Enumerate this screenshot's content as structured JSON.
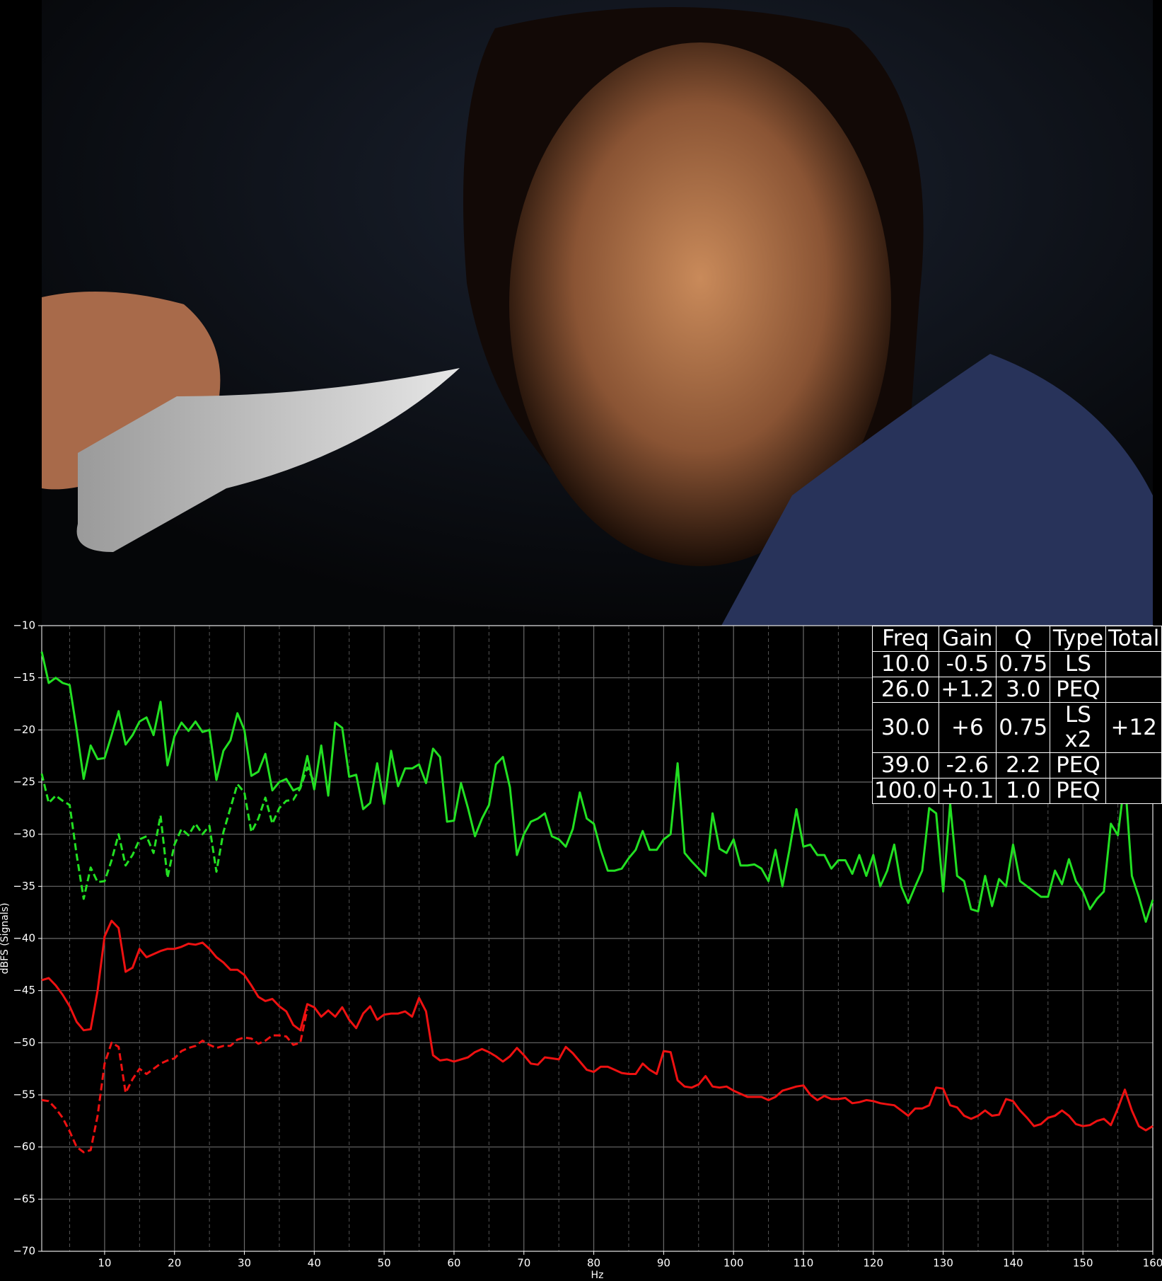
{
  "chart_data": {
    "type": "line",
    "ylabel": "dBFS (Signals)",
    "xlabel": "Hz",
    "xlim": [
      1,
      160
    ],
    "ylim": [
      -70,
      -10
    ],
    "xticks": [
      10,
      20,
      30,
      40,
      50,
      60,
      70,
      80,
      90,
      100,
      110,
      120,
      130,
      140,
      150,
      160
    ],
    "xminorticks": [
      5,
      15,
      25,
      35,
      45,
      55,
      65,
      75,
      85,
      95,
      105,
      115,
      125,
      135,
      145,
      155
    ],
    "yticks": [
      {
        "value": -70,
        "label": "−70"
      },
      {
        "value": -65,
        "label": "−65"
      },
      {
        "value": -60,
        "label": "−60"
      },
      {
        "value": -55,
        "label": "−55"
      },
      {
        "value": -50,
        "label": "−50"
      },
      {
        "value": -45,
        "label": "−45"
      },
      {
        "value": -40,
        "label": "−40"
      },
      {
        "value": -35,
        "label": "−35"
      },
      {
        "value": -30,
        "label": "−30"
      },
      {
        "value": -25,
        "label": "−25"
      },
      {
        "value": -20,
        "label": "−20"
      },
      {
        "value": -15,
        "label": "−15"
      },
      {
        "value": -10,
        "label": "−10"
      }
    ],
    "grid": true,
    "x": [
      1,
      2,
      3,
      4,
      5,
      6,
      7,
      8,
      9,
      10,
      11,
      12,
      13,
      14,
      15,
      16,
      17,
      18,
      19,
      20,
      21,
      22,
      23,
      24,
      25,
      26,
      27,
      28,
      29,
      30,
      31,
      32,
      33,
      34,
      35,
      36,
      37,
      38,
      39,
      40,
      41,
      42,
      43,
      44,
      45,
      46,
      47,
      48,
      49,
      50,
      51,
      52,
      53,
      54,
      55,
      56,
      57,
      58,
      59,
      60,
      61,
      62,
      63,
      64,
      65,
      66,
      67,
      68,
      69,
      70,
      71,
      72,
      73,
      74,
      75,
      76,
      77,
      78,
      79,
      80,
      81,
      82,
      83,
      84,
      85,
      86,
      87,
      88,
      89,
      90,
      91,
      92,
      93,
      94,
      95,
      96,
      97,
      98,
      99,
      100,
      101,
      102,
      103,
      104,
      105,
      106,
      107,
      108,
      109,
      110,
      111,
      112,
      113,
      114,
      115,
      116,
      117,
      118,
      119,
      120,
      121,
      122,
      123,
      124,
      125,
      126,
      127,
      128,
      129,
      130,
      131,
      132,
      133,
      134,
      135,
      136,
      137,
      138,
      139,
      140,
      141,
      142,
      143,
      144,
      145,
      146,
      147,
      148,
      149,
      150,
      151,
      152,
      153,
      154,
      155,
      156,
      157,
      158,
      159,
      160
    ],
    "series": [
      {
        "color": "#22e022",
        "dashed": false,
        "values": [
          -12.5,
          -15.5,
          -15,
          -15.5,
          -15.7,
          -20,
          -24.7,
          -21.5,
          -22.8,
          -22.7,
          -20.5,
          -18.2,
          -21.4,
          -20.5,
          -19.2,
          -18.8,
          -20.5,
          -17.3,
          -23.4,
          -20.6,
          -19.3,
          -20.1,
          -19.2,
          -20.2,
          -20,
          -24.8,
          -22,
          -21,
          -18.4,
          -20,
          -24.4,
          -24,
          -22.3,
          -25.8,
          -25,
          -24.7,
          -25.8,
          -25.5,
          -22.5,
          -25.7,
          -21.5,
          -26.3,
          -19.3,
          -19.8,
          -24.5,
          -24.3,
          -27.6,
          -27,
          -23.2,
          -27.1,
          -22,
          -25.4,
          -23.7,
          -23.7,
          -23.3,
          -25.1,
          -21.8,
          -22.6,
          -28.8,
          -28.7,
          -25.1,
          -27.5,
          -30.2,
          -28.5,
          -27.2,
          -23.3,
          -22.6,
          -25.5,
          -32,
          -30,
          -28.8,
          -28.5,
          -28,
          -30.2,
          -30.5,
          -31.2,
          -29.5,
          -26,
          -28.5,
          -29,
          -31.5,
          -33.5,
          -33.5,
          -33.3,
          -32.3,
          -31.5,
          -29.7,
          -31.5,
          -31.5,
          -30.5,
          -30,
          -23.2,
          -31.8,
          -32.6,
          -33.3,
          -34,
          -28,
          -31.4,
          -31.8,
          -30.5,
          -33,
          -33,
          -32.9,
          -33.3,
          -34.5,
          -31.5,
          -35,
          -31.5,
          -27.6,
          -31.2,
          -31,
          -32,
          -32,
          -33.3,
          -32.5,
          -32.5,
          -33.8,
          -32,
          -34,
          -32,
          -35,
          -33.5,
          -31,
          -35,
          -36.6,
          -35,
          -33.5,
          -27.5,
          -28,
          -35.5,
          -27.1,
          -34,
          -34.5,
          -37.2,
          -37.4,
          -34,
          -36.9,
          -34.3,
          -35,
          -31,
          -34.5,
          -35,
          -35.5,
          -36,
          -36,
          -33.5,
          -34.8,
          -32.4,
          -34.5,
          -35.5,
          -37.2,
          -36.2,
          -35.5,
          -29,
          -30.1,
          -24.7,
          -34,
          -36,
          -38.4,
          -36.3
        ]
      },
      {
        "color": "#22e022",
        "dashed": true,
        "values": [
          -24.2,
          -27,
          -26.3,
          -26.8,
          -27.2,
          -32,
          -36.2,
          -33.2,
          -34.6,
          -34.5,
          -32.5,
          -30,
          -33,
          -32,
          -30.5,
          -30.2,
          -31.8,
          -28.2,
          -34.2,
          -31,
          -29.5,
          -30.1,
          -29,
          -30,
          -29.2,
          -33.6,
          -29.8,
          -27.5,
          -25.2,
          -26,
          -29.8,
          -28.5,
          -26.5,
          -29,
          -27.5,
          -26.8,
          -26.7,
          -25.6,
          -23.6,
          -25,
          null,
          null,
          null,
          null,
          null,
          null,
          null,
          null,
          null,
          null,
          null,
          null,
          null,
          null,
          null,
          null,
          null,
          null,
          null,
          null,
          null,
          null,
          null,
          null,
          null,
          null,
          null,
          null,
          null,
          null,
          null,
          null,
          null,
          null,
          null,
          null,
          null,
          null,
          null,
          null,
          null,
          null,
          null,
          null,
          null,
          null,
          null,
          null,
          null,
          null,
          null,
          null,
          null,
          null,
          null,
          null,
          null,
          null,
          null,
          null,
          null,
          null,
          null,
          null,
          null,
          null,
          null,
          null,
          null,
          null,
          null,
          null,
          null,
          null,
          null,
          null,
          null,
          null,
          null,
          null,
          null,
          null,
          null,
          null,
          null,
          null,
          null,
          null,
          null,
          null,
          null,
          null,
          null,
          null,
          null,
          null,
          null,
          null,
          null,
          null,
          null,
          null,
          null,
          null,
          null,
          null,
          null,
          null,
          null,
          null,
          null,
          null,
          null,
          null,
          null,
          null,
          null,
          null,
          null,
          null
        ]
      },
      {
        "color": "#ee1111",
        "dashed": false,
        "values": [
          -44,
          -43.8,
          -44.5,
          -45.4,
          -46.5,
          -48,
          -48.8,
          -48.7,
          -45,
          -39.8,
          -38.3,
          -39,
          -43.2,
          -42.8,
          -41,
          -41.8,
          -41.5,
          -41.2,
          -41,
          -41,
          -40.8,
          -40.5,
          -40.6,
          -40.4,
          -41,
          -41.8,
          -42.3,
          -43,
          -43,
          -43.5,
          -44.5,
          -45.6,
          -46,
          -45.8,
          -46.5,
          -47,
          -48.3,
          -48.8,
          -46.3,
          -46.6,
          -47.5,
          -46.9,
          -47.5,
          -46.6,
          -47.8,
          -48.6,
          -47.2,
          -46.5,
          -47.8,
          -47.3,
          -47.2,
          -47.2,
          -47,
          -47.5,
          -45.7,
          -47,
          -51.2,
          -51.7,
          -51.6,
          -51.8,
          -51.6,
          -51.4,
          -50.9,
          -50.6,
          -50.9,
          -51.3,
          -51.8,
          -51.3,
          -50.5,
          -51.2,
          -52,
          -52.1,
          -51.4,
          -51.5,
          -51.6,
          -50.4,
          -51,
          -51.8,
          -52.6,
          -52.8,
          -52.3,
          -52.3,
          -52.6,
          -52.9,
          -53,
          -53,
          -52,
          -52.6,
          -53,
          -50.8,
          -50.9,
          -53.6,
          -54.2,
          -54.3,
          -54,
          -53.2,
          -54.2,
          -54.3,
          -54.2,
          -54.6,
          -54.9,
          -55.2,
          -55.2,
          -55.2,
          -55.5,
          -55.2,
          -54.6,
          -54.4,
          -54.2,
          -54.1,
          -55,
          -55.5,
          -55.1,
          -55.4,
          -55.4,
          -55.3,
          -55.8,
          -55.7,
          -55.5,
          -55.6,
          -55.8,
          -55.9,
          -56,
          -56.5,
          -57,
          -56.3,
          -56.3,
          -56,
          -54.3,
          -54.4,
          -56,
          -56.2,
          -57,
          -57.3,
          -57,
          -56.5,
          -57,
          -56.9,
          -55.4,
          -55.6,
          -56.5,
          -57.2,
          -58,
          -57.8,
          -57.2,
          -57,
          -56.5,
          -57,
          -57.8,
          -58,
          -57.9,
          -57.5,
          -57.3,
          -57.9,
          -56.3,
          -54.5,
          -56.5,
          -58,
          -58.4,
          -58
        ]
      },
      {
        "color": "#ee1111",
        "dashed": true,
        "values": [
          -55.5,
          -55.6,
          -56.3,
          -57.2,
          -58.5,
          -60,
          -60.5,
          -60.3,
          -57,
          -52,
          -50,
          -50.4,
          -54.8,
          -53.5,
          -52.5,
          -53,
          -52.5,
          -52,
          -51.7,
          -51.5,
          -50.8,
          -50.5,
          -50.3,
          -49.8,
          -50.2,
          -50.5,
          -50.3,
          -50.3,
          -49.7,
          -49.5,
          -49.6,
          -50.1,
          -49.8,
          -49.3,
          -49.3,
          -49.4,
          -50.2,
          -50,
          -46.8,
          null,
          null,
          null,
          null,
          null,
          null,
          null,
          null,
          null,
          null,
          null,
          null,
          null,
          null,
          null,
          null,
          null,
          null,
          null,
          null,
          null,
          null,
          null,
          null,
          null,
          null,
          null,
          null,
          null,
          null,
          null,
          null,
          null,
          null,
          null,
          null,
          null,
          null,
          null,
          null,
          null,
          null,
          null,
          null,
          null,
          null,
          null,
          null,
          null,
          null,
          null,
          null,
          null,
          null,
          null,
          null,
          null,
          null,
          null,
          null,
          null,
          null,
          null,
          null,
          null,
          null,
          null,
          null,
          null,
          null,
          null,
          null,
          null,
          null,
          null,
          null,
          null,
          null,
          null,
          null,
          null,
          null,
          null,
          null,
          null,
          null,
          null,
          null,
          null,
          null,
          null,
          null,
          null,
          null,
          null,
          null,
          null,
          null,
          null,
          null,
          null,
          null,
          null,
          null,
          null,
          null,
          null,
          null,
          null,
          null,
          null,
          null,
          null,
          null,
          null,
          null,
          null,
          null,
          null,
          null,
          null
        ]
      }
    ]
  },
  "table": {
    "columns": [
      "Freq",
      "Gain",
      "Q",
      "Type",
      "Total"
    ],
    "rows": [
      [
        "10.0",
        "-0.5",
        "0.75",
        "LS"
      ],
      [
        "26.0",
        "+1.2",
        "3.0",
        "PEQ"
      ],
      [
        "30.0",
        "+6",
        "0.75",
        "LS x2",
        "+12"
      ],
      [
        "39.0",
        "-2.6",
        "2.2",
        "PEQ"
      ],
      [
        "100.0",
        "+0.1",
        "1.0",
        "PEQ"
      ]
    ]
  }
}
